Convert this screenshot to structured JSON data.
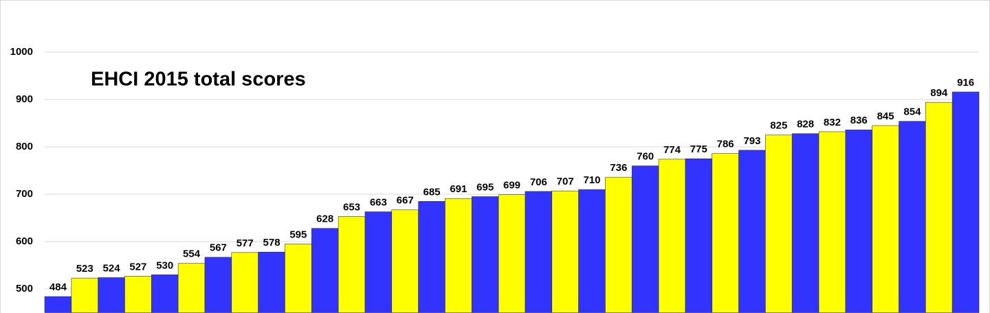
{
  "chart_data": {
    "type": "bar",
    "title": "EHCI 2015 total scores",
    "values": [
      484,
      523,
      524,
      527,
      530,
      554,
      567,
      577,
      578,
      595,
      628,
      653,
      663,
      667,
      685,
      691,
      695,
      699,
      706,
      707,
      710,
      736,
      760,
      774,
      775,
      786,
      793,
      825,
      828,
      832,
      836,
      845,
      854,
      894,
      916
    ],
    "colors": [
      "#3333ff",
      "#ffff00"
    ],
    "ylim": [
      450,
      1000
    ],
    "yticks": [
      500,
      600,
      700,
      800,
      900,
      1000
    ],
    "grid": true
  }
}
